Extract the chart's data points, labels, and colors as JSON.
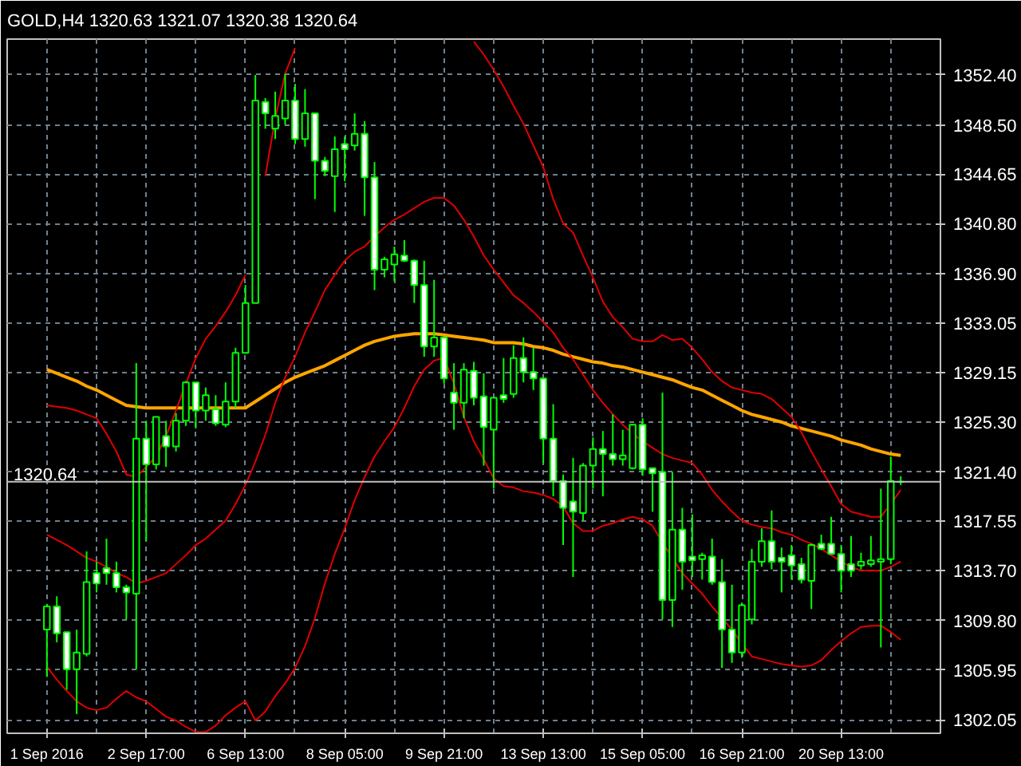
{
  "chart_data": {
    "type": "candlestick",
    "title": "GOLD,H4  1320.63 1321.07 1320.38 1320.64",
    "color": "#00ff00",
    "grid": true,
    "categories": [
      "1 Sep 2016",
      null,
      null,
      null,
      null,
      null,
      null,
      null,
      null,
      null,
      "2 Sep 17:00",
      null,
      null,
      null,
      null,
      null,
      null,
      null,
      null,
      null,
      "6 Sep 13:00",
      null,
      null,
      null,
      null,
      null,
      null,
      null,
      null,
      null,
      "8 Sep 05:00",
      null,
      null,
      null,
      null,
      null,
      null,
      null,
      null,
      null,
      "9 Sep 21:00",
      null,
      null,
      null,
      null,
      null,
      null,
      null,
      null,
      null,
      "13 Sep 13:00",
      null,
      null,
      null,
      null,
      null,
      null,
      null,
      null,
      null,
      "15 Sep 05:00",
      null,
      null,
      null,
      null,
      null,
      null,
      null,
      null,
      null,
      "16 Sep 21:00",
      null,
      null,
      null,
      null,
      null,
      null,
      null,
      null,
      null,
      "20 Sep 13:00",
      null,
      null,
      null,
      null,
      null,
      null
    ],
    "ohlc": [
      [
        1309.1,
        1311.1,
        1305.4,
        1310.9
      ],
      [
        1310.9,
        1311.7,
        1308.1,
        1308.8
      ],
      [
        1308.9,
        1308.9,
        1304.4,
        1306.0
      ],
      [
        1306.0,
        1309.1,
        1302.5,
        1307.3
      ],
      [
        1307.2,
        1315.2,
        1307.0,
        1312.8
      ],
      [
        1313.5,
        1314.4,
        1312.0,
        1312.7
      ],
      [
        1313.9,
        1316.2,
        1312.6,
        1313.5
      ],
      [
        1313.5,
        1314.4,
        1312.0,
        1312.4
      ],
      [
        1312.4,
        1312.6,
        1309.9,
        1312.0
      ],
      [
        1311.9,
        1329.9,
        1306.0,
        1324.0
      ],
      [
        1324.0,
        1325.4,
        1316.0,
        1322.0
      ],
      [
        1322.0,
        1325.7,
        1321.6,
        1325.7
      ],
      [
        1324.2,
        1325.4,
        1321.8,
        1323.4
      ],
      [
        1323.4,
        1326.0,
        1323.0,
        1325.4
      ],
      [
        1325.4,
        1328.5,
        1325.0,
        1328.4
      ],
      [
        1328.4,
        1328.4,
        1324.8,
        1326.2
      ],
      [
        1326.2,
        1328.0,
        1325.4,
        1327.4
      ],
      [
        1326.3,
        1327.4,
        1325.0,
        1325.2
      ],
      [
        1325.1,
        1328.4,
        1324.9,
        1326.9
      ],
      [
        1326.9,
        1331.1,
        1326.4,
        1330.7
      ],
      [
        1330.7,
        1336.0,
        1330.7,
        1334.6
      ],
      [
        1334.6,
        1352.4,
        1334.6,
        1350.4
      ],
      [
        1350.3,
        1350.6,
        1348.2,
        1349.4
      ],
      [
        1348.2,
        1351.1,
        1347.4,
        1349.2
      ],
      [
        1349.0,
        1352.5,
        1348.5,
        1350.4
      ],
      [
        1350.4,
        1351.7,
        1347.0,
        1347.4
      ],
      [
        1347.4,
        1351.3,
        1346.8,
        1349.4
      ],
      [
        1349.4,
        1349.4,
        1342.7,
        1345.7
      ],
      [
        1345.7,
        1346.0,
        1344.5,
        1344.9
      ],
      [
        1344.5,
        1347.6,
        1341.7,
        1346.6
      ],
      [
        1347.0,
        1347.6,
        1344.1,
        1346.6
      ],
      [
        1346.9,
        1349.4,
        1346.5,
        1347.8
      ],
      [
        1347.8,
        1348.8,
        1341.4,
        1344.4
      ],
      [
        1344.4,
        1345.6,
        1335.6,
        1337.2
      ],
      [
        1337.2,
        1338.2,
        1336.6,
        1338.0
      ],
      [
        1337.6,
        1339.0,
        1336.3,
        1338.4
      ],
      [
        1338.3,
        1339.5,
        1337.8,
        1337.9
      ],
      [
        1337.9,
        1338.0,
        1334.6,
        1336.0
      ],
      [
        1336.0,
        1337.9,
        1330.4,
        1331.2
      ],
      [
        1331.2,
        1336.4,
        1330.4,
        1331.9
      ],
      [
        1331.9,
        1331.9,
        1328.3,
        1328.7
      ],
      [
        1327.6,
        1329.9,
        1324.7,
        1326.8
      ],
      [
        1326.8,
        1329.9,
        1325.6,
        1329.4
      ],
      [
        1329.3,
        1330.0,
        1326.6,
        1327.2
      ],
      [
        1327.3,
        1329.1,
        1321.9,
        1324.9
      ],
      [
        1324.7,
        1327.2,
        1320.1,
        1327.2
      ],
      [
        1327.4,
        1330.3,
        1326.8,
        1327.1
      ],
      [
        1327.5,
        1331.3,
        1327.2,
        1330.3
      ],
      [
        1330.3,
        1331.9,
        1328.4,
        1329.2
      ],
      [
        1329.2,
        1331.1,
        1327.8,
        1328.7
      ],
      [
        1328.7,
        1328.7,
        1322.1,
        1324.0
      ],
      [
        1324.0,
        1326.7,
        1319.5,
        1320.7
      ],
      [
        1320.7,
        1321.2,
        1315.7,
        1318.6
      ],
      [
        1319.1,
        1322.5,
        1313.2,
        1318.3
      ],
      [
        1318.2,
        1322.1,
        1317.6,
        1321.9
      ],
      [
        1321.9,
        1324.1,
        1320.1,
        1323.2
      ],
      [
        1323.2,
        1324.6,
        1319.5,
        1322.8
      ],
      [
        1322.8,
        1325.9,
        1321.9,
        1322.4
      ],
      [
        1322.4,
        1324.7,
        1321.9,
        1322.7
      ],
      [
        1321.7,
        1325.1,
        1321.6,
        1325.1
      ],
      [
        1325.1,
        1325.6,
        1321.1,
        1321.6
      ],
      [
        1321.7,
        1321.7,
        1318.3,
        1321.3
      ],
      [
        1321.4,
        1327.6,
        1309.9,
        1311.4
      ],
      [
        1311.4,
        1321.4,
        1309.3,
        1316.9
      ],
      [
        1316.9,
        1318.6,
        1312.2,
        1314.4
      ],
      [
        1314.8,
        1318.1,
        1313.2,
        1314.5
      ],
      [
        1314.6,
        1315.1,
        1313.0,
        1314.9
      ],
      [
        1314.8,
        1316.2,
        1312.6,
        1312.8
      ],
      [
        1312.8,
        1314.6,
        1306.1,
        1309.1
      ],
      [
        1309.1,
        1312.6,
        1306.5,
        1307.3
      ],
      [
        1307.3,
        1311.2,
        1306.9,
        1311.0
      ],
      [
        1309.9,
        1315.4,
        1309.5,
        1314.4
      ],
      [
        1314.4,
        1317.0,
        1314.0,
        1316.0
      ],
      [
        1316.0,
        1318.4,
        1313.8,
        1314.4
      ],
      [
        1314.7,
        1315.5,
        1312.0,
        1314.4
      ],
      [
        1314.9,
        1315.7,
        1313.0,
        1314.1
      ],
      [
        1314.2,
        1314.7,
        1312.7,
        1313.0
      ],
      [
        1312.9,
        1315.8,
        1310.7,
        1315.7
      ],
      [
        1315.8,
        1316.5,
        1315.3,
        1315.4
      ],
      [
        1315.8,
        1317.9,
        1315.0,
        1315.0
      ],
      [
        1315.0,
        1315.7,
        1312.0,
        1313.7
      ],
      [
        1314.2,
        1316.4,
        1313.2,
        1313.7
      ],
      [
        1314.1,
        1315.1,
        1313.8,
        1314.4
      ],
      [
        1314.2,
        1316.4,
        1314.0,
        1314.5
      ],
      [
        1314.4,
        1320.1,
        1307.7,
        1314.6
      ],
      [
        1314.6,
        1322.6,
        1314.2,
        1320.7
      ],
      [
        1320.63,
        1321.07,
        1320.38,
        1320.64
      ]
    ],
    "series": [
      {
        "type": "line",
        "color": "#ffa500",
        "values": [
          1329.4,
          1329.1,
          1328.8,
          1328.5,
          1328.1,
          1327.8,
          1327.4,
          1327.0,
          1326.6,
          1326.5,
          1326.4,
          1326.4,
          1326.4,
          1326.4,
          1326.4,
          1326.4,
          1326.4,
          1326.4,
          1326.4,
          1326.4,
          1326.4,
          1326.9,
          1327.4,
          1327.9,
          1328.4,
          1328.8,
          1329.1,
          1329.4,
          1329.7,
          1330.1,
          1330.5,
          1330.9,
          1331.3,
          1331.6,
          1331.8,
          1332.0,
          1332.1,
          1332.2,
          1332.2,
          1332.2,
          1332.1,
          1332.0,
          1331.9,
          1331.8,
          1331.7,
          1331.5,
          1331.5,
          1331.5,
          1331.4,
          1331.2,
          1331.1,
          1330.9,
          1330.6,
          1330.4,
          1330.2,
          1330.0,
          1329.9,
          1329.7,
          1329.6,
          1329.4,
          1329.2,
          1329.0,
          1328.8,
          1328.6,
          1328.3,
          1328.0,
          1327.8,
          1327.4,
          1327.0,
          1326.6,
          1326.2,
          1325.9,
          1325.7,
          1325.5,
          1325.3,
          1325.0,
          1324.8,
          1324.6,
          1324.4,
          1324.2,
          1323.9,
          1323.7,
          1323.5,
          1323.2,
          1323.0,
          1322.8,
          1322.7
        ]
      },
      {
        "type": "line",
        "color": "#e00000",
        "values": [
          1326.6,
          1326.5,
          1326.4,
          1326.2,
          1325.9,
          1325.6,
          1324.4,
          1323.0,
          1321.2,
          1321.0,
          1321.8,
          1322.6,
          1324.2,
          1326.2,
          1328.3,
          1330.3,
          1331.8,
          1332.8,
          1333.9,
          1335.2,
          1336.8,
          null,
          1344.5,
          1349.0,
          1352.5,
          1354.5,
          null,
          null,
          null,
          null,
          null,
          null,
          null,
          null,
          null,
          null,
          null,
          null,
          null,
          null,
          null,
          null,
          null,
          1355.0,
          1354.0,
          1352.8,
          1351.5,
          1350.0,
          1348.6,
          1346.9,
          1345.2,
          1342.7,
          1340.8,
          1340.1,
          1338.3,
          1336.6,
          1334.7,
          1333.5,
          1332.7,
          1331.8,
          1331.6,
          1331.6,
          1332.1,
          1331.7,
          1331.8,
          1331.1,
          1330.2,
          1329.2,
          1328.5,
          1328.0,
          1327.8,
          1327.6,
          1327.5,
          1327.1,
          1326.4,
          1325.7,
          1324.5,
          1323.0,
          1321.6,
          1320.3,
          1318.9,
          1318.3,
          1318.1,
          1317.9,
          1317.9,
          1318.9,
          1320.0
        ]
      },
      {
        "type": "line",
        "color": "#e00000",
        "values": [
          1316.5,
          1316.1,
          1315.7,
          1315.2,
          1314.7,
          1314.4,
          1314.0,
          1313.5,
          1313.2,
          1312.7,
          1312.9,
          1313.2,
          1313.5,
          1314.2,
          1314.9,
          1315.7,
          1316.2,
          1316.9,
          1317.6,
          1318.9,
          1320.4,
          1322.2,
          1324.3,
          1326.8,
          1328.8,
          1330.4,
          1332.3,
          1333.9,
          1335.6,
          1336.8,
          1337.9,
          1338.6,
          1339.0,
          1339.8,
          1340.5,
          1341.1,
          1341.5,
          1342.0,
          1342.5,
          1342.8,
          1342.8,
          1342.2,
          1341.1,
          1339.8,
          1338.3,
          1337.2,
          1336.2,
          1335.2,
          1334.6,
          1333.9,
          1333.1,
          1332.3,
          1331.1,
          1330.2,
          1329.0,
          1327.8,
          1326.8,
          1325.9,
          1325.1,
          1324.4,
          1323.8,
          1323.3,
          1322.8,
          1322.5,
          1322.3,
          1322.1,
          1321.2,
          1320.0,
          1319.1,
          1318.3,
          1317.6,
          1317.3,
          1317.1,
          1317.0,
          1316.7,
          1316.5,
          1316.1,
          1315.8,
          1315.4,
          1314.9,
          1314.4,
          1314.0,
          1313.7,
          1313.7,
          1313.7,
          1314.0,
          1314.4
        ]
      },
      {
        "type": "line",
        "color": "#e00000",
        "values": [
          1306.2,
          1305.2,
          1304.3,
          1303.5,
          1303.0,
          1302.8,
          1303.0,
          1303.7,
          1304.3,
          1303.8,
          1303.5,
          1302.9,
          1302.3,
          1302.0,
          1301.5,
          1301.1,
          1301.1,
          1301.6,
          1302.4,
          1303.0,
          1303.5,
          1302.0,
          1302.7,
          1303.9,
          1304.9,
          1306.1,
          1307.8,
          1310.0,
          1312.7,
          1315.0,
          1317.0,
          1319.2,
          1321.0,
          1322.6,
          1323.8,
          1324.9,
          1326.4,
          1328.1,
          1329.4,
          1330.1,
          1330.3,
          1328.3,
          1325.7,
          1323.8,
          1322.4,
          1320.9,
          1320.3,
          1320.2,
          1319.9,
          1319.8,
          1319.6,
          1319.3,
          1318.7,
          1317.4,
          1316.8,
          1316.8,
          1317.2,
          1317.4,
          1317.7,
          1317.9,
          1317.7,
          1317.2,
          1315.9,
          1314.7,
          1313.5,
          1312.7,
          1311.9,
          1310.9,
          1310.0,
          1309.1,
          1308.0,
          1307.0,
          1306.8,
          1306.6,
          1306.4,
          1306.3,
          1306.2,
          1306.3,
          1306.7,
          1307.5,
          1308.2,
          1308.8,
          1309.3,
          1309.4,
          1309.4,
          1308.9,
          1308.3
        ]
      }
    ],
    "ylim": [
      1301.0,
      1355.2
    ],
    "yticks": [
      {
        "value": 1302.05,
        "label": "1302.05"
      },
      {
        "value": 1305.95,
        "label": "1305.95"
      },
      {
        "value": 1309.8,
        "label": "1309.80"
      },
      {
        "value": 1313.7,
        "label": "1313.70"
      },
      {
        "value": 1317.55,
        "label": "1317.55"
      },
      {
        "value": 1321.4,
        "label": "1321.40"
      },
      {
        "value": 1325.3,
        "label": "1325.30"
      },
      {
        "value": 1329.15,
        "label": "1329.15"
      },
      {
        "value": 1333.05,
        "label": "1333.05"
      },
      {
        "value": 1336.9,
        "label": "1336.90"
      },
      {
        "value": 1340.8,
        "label": "1340.80"
      },
      {
        "value": 1344.65,
        "label": "1344.65"
      },
      {
        "value": 1348.5,
        "label": "1348.50"
      },
      {
        "value": 1352.4,
        "label": "1352.40"
      }
    ],
    "ref_lines": [
      {
        "axis": "y",
        "value": 1320.64,
        "label": "1320.64",
        "color": "#c0c0c0"
      }
    ]
  }
}
